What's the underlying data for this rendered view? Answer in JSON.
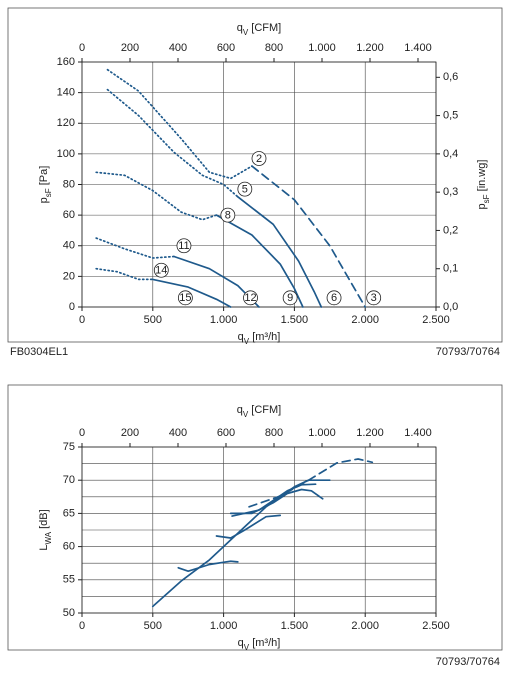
{
  "chart_data": [
    {
      "type": "line",
      "x2label": {
        "main": "q",
        "sub": "V",
        "suffix": " [CFM]"
      },
      "xlabel": {
        "main": "q",
        "sub": "V",
        "suffix": " [m³/h]"
      },
      "ylabel": {
        "main": "p",
        "sub": "sF",
        "suffix": " [Pa]"
      },
      "y2label": {
        "main": "p",
        "sub": "sF",
        "suffix": " [in.wg]"
      },
      "xlim": [
        0,
        2500
      ],
      "xticks": [
        0,
        500,
        {
          "value": 1000,
          "label": "1.000"
        },
        {
          "value": 1500,
          "label": "1.500"
        },
        {
          "value": 2000,
          "label": "2.000"
        },
        {
          "value": 2500,
          "label": "2.500"
        }
      ],
      "x2lim": [
        0,
        1475
      ],
      "x2ticks": [
        0,
        200,
        400,
        600,
        800,
        {
          "value": 1000,
          "label": "1.000"
        },
        {
          "value": 1200,
          "label": "1.200"
        },
        {
          "value": 1400,
          "label": "1.400"
        }
      ],
      "ylim": [
        0,
        160
      ],
      "yticks": [
        0,
        20,
        40,
        60,
        80,
        100,
        120,
        140,
        160
      ],
      "y2lim": [
        0,
        0.64
      ],
      "y2ticks": [
        {
          "value": 0,
          "label": "0,0"
        },
        {
          "value": 0.1,
          "label": "0,1"
        },
        {
          "value": 0.2,
          "label": "0,2"
        },
        {
          "value": 0.3,
          "label": "0,3"
        },
        {
          "value": 0.4,
          "label": "0,4"
        },
        {
          "value": 0.5,
          "label": "0,5"
        },
        {
          "value": 0.6,
          "label": "0,6"
        }
      ],
      "grid": true,
      "color": "#1f5a8c",
      "series": [
        {
          "style": "dotted",
          "x": [
            180,
            400,
            700,
            900,
            1050,
            1200
          ],
          "y": [
            155,
            141,
            110,
            88,
            84,
            92
          ]
        },
        {
          "style": "dashed",
          "x": [
            1200,
            1500,
            1750,
            1900,
            2000
          ],
          "y": [
            92,
            70,
            40,
            16,
            0
          ]
        },
        {
          "style": "dotted",
          "x": [
            180,
            400,
            650,
            850,
            1000,
            1100
          ],
          "y": [
            142,
            125,
            101,
            86,
            80,
            72
          ]
        },
        {
          "style": "solid",
          "x": [
            1100,
            1350,
            1530,
            1640,
            1690
          ],
          "y": [
            72,
            54,
            30,
            10,
            0
          ]
        },
        {
          "style": "dotted",
          "x": [
            100,
            300,
            500,
            700,
            850,
            950
          ],
          "y": [
            88,
            86,
            76,
            62,
            57,
            60
          ]
        },
        {
          "style": "solid",
          "x": [
            950,
            1200,
            1400,
            1500,
            1560
          ],
          "y": [
            60,
            47,
            28,
            12,
            0
          ]
        },
        {
          "style": "dotted",
          "x": [
            100,
            300,
            500,
            650
          ],
          "y": [
            45,
            38,
            32,
            33
          ]
        },
        {
          "style": "solid",
          "x": [
            650,
            900,
            1100,
            1250
          ],
          "y": [
            33,
            25,
            14,
            0
          ]
        },
        {
          "style": "dotted",
          "x": [
            100,
            250,
            400,
            500
          ],
          "y": [
            25,
            23,
            18,
            18
          ]
        },
        {
          "style": "solid",
          "x": [
            500,
            750,
            950,
            1050
          ],
          "y": [
            18,
            13,
            5,
            0
          ]
        }
      ],
      "annotations": [
        {
          "text": "2",
          "x": 1250,
          "y": 97
        },
        {
          "text": "5",
          "x": 1150,
          "y": 77
        },
        {
          "text": "8",
          "x": 1030,
          "y": 60
        },
        {
          "text": "11",
          "x": 720,
          "y": 40
        },
        {
          "text": "14",
          "x": 560,
          "y": 24
        },
        {
          "text": "15",
          "x": 730,
          "y": 6
        },
        {
          "text": "12",
          "x": 1190,
          "y": 6
        },
        {
          "text": "9",
          "x": 1470,
          "y": 6
        },
        {
          "text": "6",
          "x": 1780,
          "y": 6
        },
        {
          "text": "3",
          "x": 2060,
          "y": 6
        }
      ],
      "footer_left": "FB0304EL1",
      "footer_right": "70793/70764"
    },
    {
      "type": "line",
      "x2label": {
        "main": "q",
        "sub": "V",
        "suffix": " [CFM]"
      },
      "xlabel": {
        "main": "q",
        "sub": "V",
        "suffix": " [m³/h]"
      },
      "ylabel": {
        "main": "L",
        "sub": "WA",
        "suffix": " [dB]"
      },
      "xlim": [
        0,
        2500
      ],
      "xticks": [
        0,
        500,
        {
          "value": 1000,
          "label": "1.000"
        },
        {
          "value": 1500,
          "label": "1.500"
        },
        {
          "value": 2000,
          "label": "2.000"
        },
        {
          "value": 2500,
          "label": "2.500"
        }
      ],
      "x2lim": [
        0,
        1475
      ],
      "x2ticks": [
        0,
        200,
        400,
        600,
        800,
        {
          "value": 1000,
          "label": "1.000"
        },
        {
          "value": 1200,
          "label": "1.200"
        },
        {
          "value": 1400,
          "label": "1.400"
        }
      ],
      "ylim": [
        50,
        75
      ],
      "yticks": [
        50,
        55,
        60,
        65,
        70,
        75
      ],
      "yminor": [
        52.5,
        57.5,
        62.5,
        67.5,
        72.5
      ],
      "grid": true,
      "color": "#1f5a8c",
      "series": [
        {
          "style": "solid",
          "x": [
            500,
            700,
            900,
            1100,
            1300,
            1500,
            1600,
            1750
          ],
          "y": [
            51,
            54.8,
            58,
            62,
            66,
            69,
            70,
            70
          ]
        },
        {
          "style": "solid",
          "x": [
            680,
            750,
            900,
            1050,
            1100
          ],
          "y": [
            56.8,
            56.3,
            57.3,
            57.8,
            57.7
          ]
        },
        {
          "style": "solid",
          "x": [
            950,
            1050,
            1150,
            1300,
            1400
          ],
          "y": [
            61.6,
            61.3,
            62.5,
            64.5,
            64.7
          ]
        },
        {
          "style": "solid",
          "x": [
            1050,
            1200,
            1350,
            1450,
            1550,
            1620,
            1700
          ],
          "y": [
            65,
            65,
            66.6,
            68,
            68.6,
            68.4,
            67.2
          ]
        },
        {
          "style": "solid",
          "x": [
            1060,
            1250,
            1450,
            1550,
            1650
          ],
          "y": [
            64.6,
            65.5,
            68.4,
            69.3,
            69.4
          ]
        },
        {
          "style": "dashed",
          "x": [
            1180,
            1400,
            1600,
            1800,
            1950,
            2050
          ],
          "y": [
            66,
            67.6,
            70,
            72.6,
            73.2,
            72.7
          ]
        }
      ],
      "footer_right": "70793/70764"
    }
  ]
}
